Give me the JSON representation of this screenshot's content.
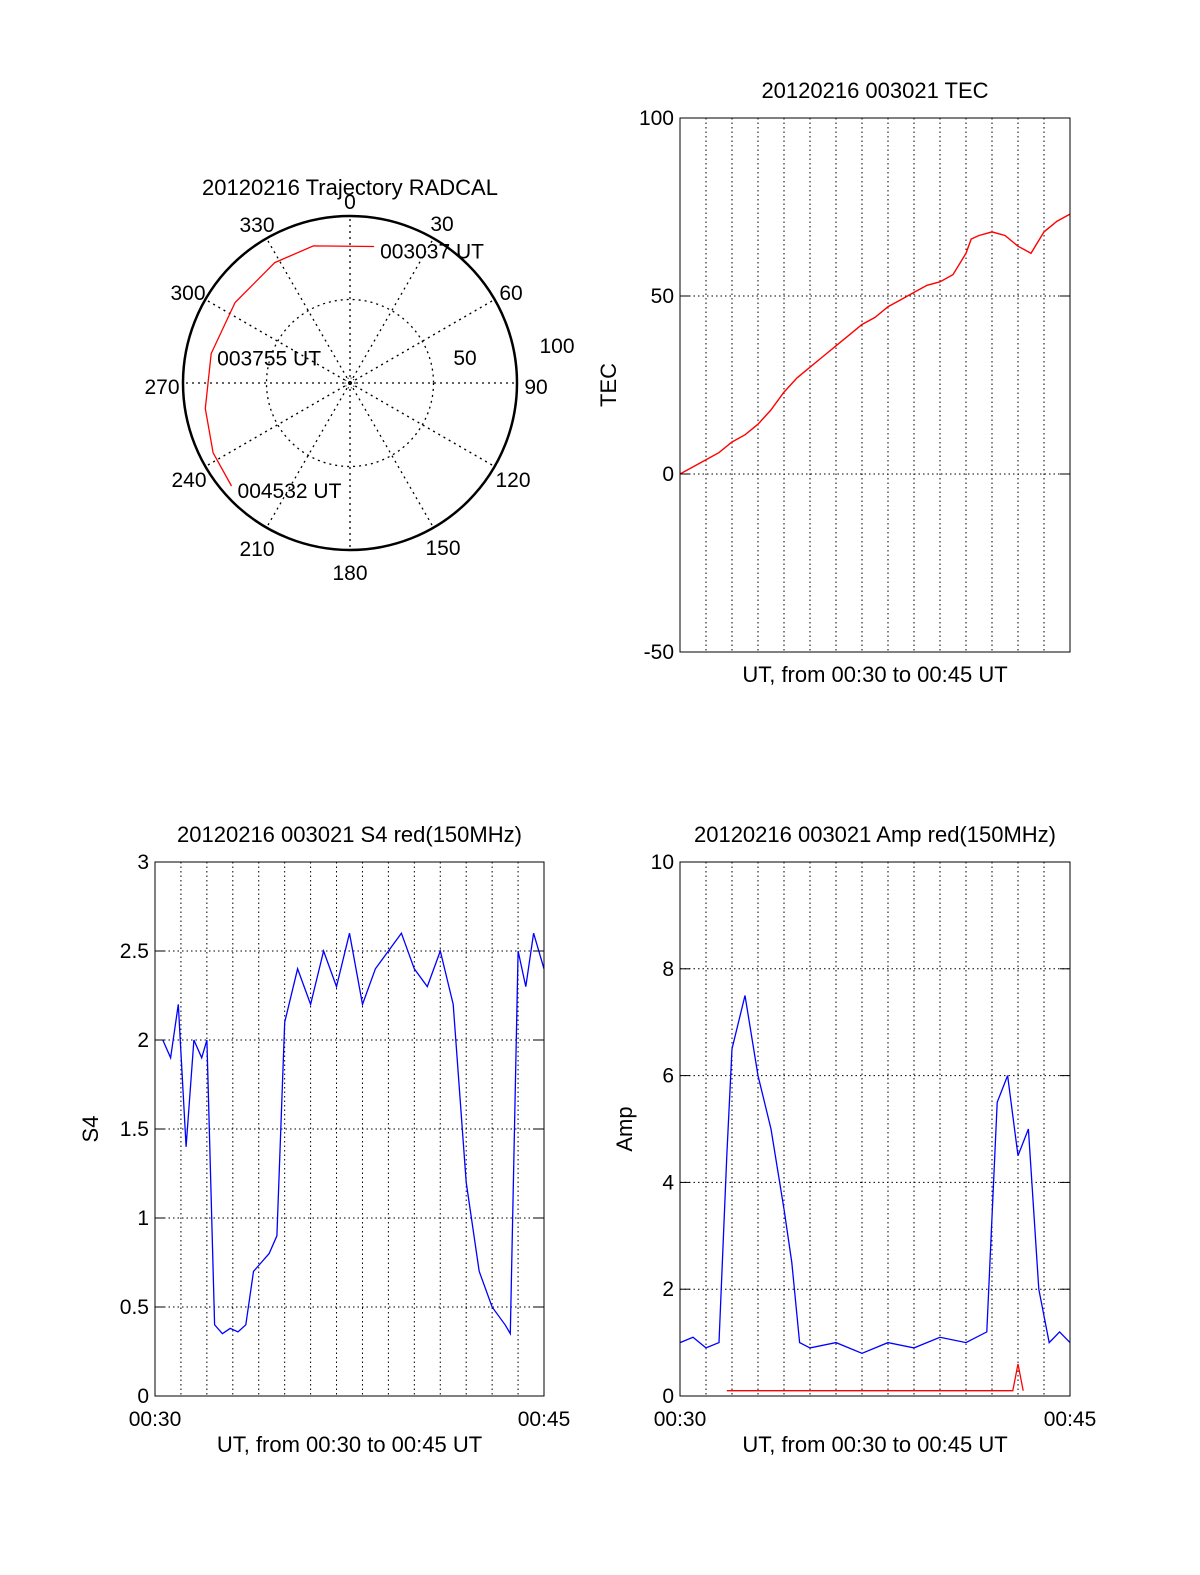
{
  "chart_data": [
    {
      "type": "polar",
      "title": "20120216 Trajectory RADCAL",
      "angle_labels": [
        "0",
        "30",
        "60",
        "90",
        "120",
        "150",
        "180",
        "210",
        "240",
        "270",
        "300",
        "330"
      ],
      "radius_labels": [
        "50",
        "100"
      ],
      "rlim": [
        0,
        100
      ],
      "grid": true,
      "series": [
        {
          "color": "#ff0000",
          "points": [
            [
              10,
              83
            ],
            [
              345,
              85
            ],
            [
              328,
              85
            ],
            [
              305,
              84
            ],
            [
              282,
              85
            ],
            [
              260,
              88
            ],
            [
              243,
              92
            ],
            [
              229,
              94
            ]
          ]
        }
      ],
      "annotations": [
        {
          "text": "003037 UT",
          "azimuth": 10,
          "radius": 83
        },
        {
          "text": "003755 UT",
          "azimuth": 282,
          "radius": 85
        },
        {
          "text": "004532 UT",
          "azimuth": 229,
          "radius": 94
        }
      ]
    },
    {
      "type": "line",
      "title": "20120216 003021 TEC",
      "xlabel": "UT, from 00:30 to 00:45 UT",
      "ylabel": "TEC",
      "xlim": [
        0,
        15
      ],
      "ylim": [
        -50,
        100
      ],
      "yticks": [
        "-50",
        "0",
        "50",
        "100"
      ],
      "grid": true,
      "series": [
        {
          "color": "#ff0000",
          "x": [
            0,
            0.5,
            1,
            1.5,
            2,
            2.5,
            3,
            3.5,
            4,
            4.5,
            5,
            5.5,
            6,
            6.5,
            7,
            7.5,
            8,
            8.5,
            9,
            9.5,
            10,
            10.5,
            11,
            11.2,
            11.5,
            12,
            12.5,
            13,
            13.5,
            14,
            14.5,
            15
          ],
          "y": [
            0,
            2,
            4,
            6,
            9,
            11,
            14,
            18,
            23,
            27,
            30,
            33,
            36,
            39,
            42,
            44,
            47,
            49,
            51,
            53,
            54,
            56,
            62,
            66,
            67,
            68,
            67,
            64,
            62,
            68,
            71,
            73
          ]
        }
      ]
    },
    {
      "type": "line",
      "title": "20120216 003021 S4 red(150MHz)",
      "xlabel": "UT, from 00:30 to 00:45 UT",
      "ylabel": "S4",
      "xlim": [
        0,
        15
      ],
      "ylim": [
        0,
        3
      ],
      "xticks": [
        "00:30",
        "00:45"
      ],
      "yticks": [
        "0",
        "0.5",
        "1",
        "1.5",
        "2",
        "2.5",
        "3"
      ],
      "grid": true,
      "series": [
        {
          "color": "#0000ff",
          "x": [
            0.3,
            0.6,
            0.9,
            1.2,
            1.5,
            1.8,
            2.0,
            2.3,
            2.6,
            2.9,
            3.2,
            3.5,
            3.8,
            4.1,
            4.4,
            4.7,
            5.0,
            5.5,
            6.0,
            6.5,
            7.0,
            7.5,
            8.0,
            8.5,
            9.0,
            9.5,
            10.0,
            10.5,
            11.0,
            11.5,
            12.0,
            12.5,
            13.0,
            13.5,
            13.7,
            14.0,
            14.3,
            14.6,
            15.0
          ],
          "y": [
            2.0,
            1.9,
            2.2,
            1.4,
            2.0,
            1.9,
            2.0,
            0.4,
            0.35,
            0.38,
            0.36,
            0.4,
            0.7,
            0.75,
            0.8,
            0.9,
            2.1,
            2.4,
            2.2,
            2.5,
            2.3,
            2.6,
            2.2,
            2.4,
            2.5,
            2.6,
            2.4,
            2.3,
            2.5,
            2.2,
            1.2,
            0.7,
            0.5,
            0.4,
            0.35,
            2.5,
            2.3,
            2.6,
            2.4
          ]
        }
      ]
    },
    {
      "type": "line",
      "title": "20120216 003021 Amp red(150MHz)",
      "xlabel": "UT, from 00:30 to 00:45 UT",
      "ylabel": "Amp",
      "xlim": [
        0,
        15
      ],
      "ylim": [
        0,
        10
      ],
      "xticks": [
        "00:30",
        "00:45"
      ],
      "yticks": [
        "0",
        "2",
        "4",
        "6",
        "8",
        "10"
      ],
      "grid": true,
      "series": [
        {
          "color": "#0000ff",
          "x": [
            0.0,
            0.5,
            1.0,
            1.5,
            1.8,
            2.0,
            2.5,
            3.0,
            3.5,
            4.0,
            4.3,
            4.6,
            5.0,
            6.0,
            7.0,
            8.0,
            9.0,
            10.0,
            11.0,
            11.8,
            12.2,
            12.6,
            13.0,
            13.4,
            13.8,
            14.2,
            14.6,
            15.0
          ],
          "y": [
            1.0,
            1.1,
            0.9,
            1.0,
            4.5,
            6.5,
            7.5,
            6.0,
            5.0,
            3.5,
            2.5,
            1.0,
            0.9,
            1.0,
            0.8,
            1.0,
            0.9,
            1.1,
            1.0,
            1.2,
            5.5,
            6.0,
            4.5,
            5.0,
            2.0,
            1.0,
            1.2,
            1.0
          ]
        },
        {
          "color": "#ff0000",
          "x": [
            1.8,
            3.3,
            12.8,
            13.0,
            13.2
          ],
          "y": [
            0.1,
            0.1,
            0.1,
            0.6,
            0.1
          ]
        }
      ]
    }
  ]
}
